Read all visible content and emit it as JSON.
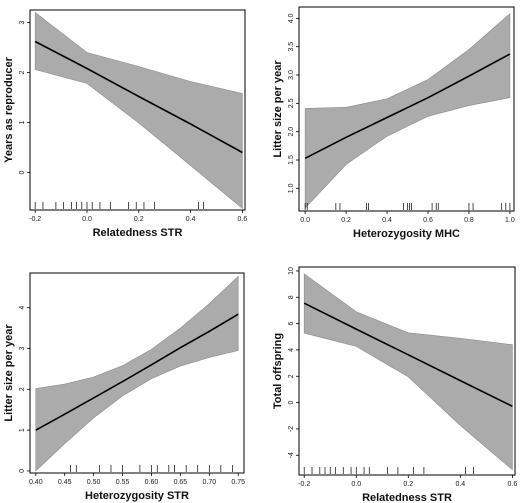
{
  "chart_data": [
    {
      "type": "line",
      "xlabel": "Relatedness STR",
      "ylabel": "Years as reproducer",
      "xlim": [
        -0.22,
        0.61
      ],
      "ylim": [
        -0.75,
        3.25
      ],
      "xticks": [
        "-0.2",
        "0.0",
        "0.2",
        "0.4",
        "0.6"
      ],
      "xtick_values": [
        -0.2,
        0.0,
        0.2,
        0.4,
        0.6
      ],
      "yticks": [
        "0",
        "1",
        "2",
        "3"
      ],
      "ytick_values": [
        0,
        1,
        2,
        3
      ],
      "x": [
        -0.2,
        0.0,
        0.2,
        0.4,
        0.6
      ],
      "fit": [
        2.62,
        2.08,
        1.52,
        0.97,
        0.4
      ],
      "lower": [
        2.06,
        1.78,
        0.99,
        0.14,
        -0.72
      ],
      "upper": [
        3.2,
        2.4,
        2.12,
        1.82,
        1.58
      ],
      "rug": [
        -0.2,
        -0.17,
        -0.12,
        -0.09,
        -0.06,
        -0.04,
        -0.02,
        0.0,
        0.02,
        0.05,
        0.09,
        0.16,
        0.19,
        0.22,
        0.26,
        0.43,
        0.45
      ]
    },
    {
      "type": "line",
      "xlabel": "Heterozygosity MHC",
      "ylabel": "Litter size per year",
      "xlim": [
        -0.03,
        1.02
      ],
      "ylim": [
        0.6,
        4.2
      ],
      "xticks": [
        "0.0",
        "0.2",
        "0.4",
        "0.6",
        "0.8",
        "1.0"
      ],
      "xtick_values": [
        0.0,
        0.2,
        0.4,
        0.6,
        0.8,
        1.0
      ],
      "yticks": [
        "1.0",
        "1.5",
        "2.0",
        "2.5",
        "3.0",
        "3.5",
        "4.0"
      ],
      "ytick_values": [
        1.0,
        1.5,
        2.0,
        2.5,
        3.0,
        3.5,
        4.0
      ],
      "x": [
        0.0,
        0.2,
        0.4,
        0.6,
        0.8,
        1.0
      ],
      "fit": [
        1.53,
        1.9,
        2.25,
        2.6,
        2.98,
        3.37
      ],
      "lower": [
        0.65,
        1.42,
        1.92,
        2.27,
        2.46,
        2.6
      ],
      "upper": [
        2.41,
        2.43,
        2.58,
        2.92,
        3.45,
        4.08
      ],
      "rug": [
        0.0,
        0.01,
        0.15,
        0.17,
        0.3,
        0.31,
        0.48,
        0.5,
        0.51,
        0.52,
        0.62,
        0.64,
        0.65,
        0.8,
        0.82,
        0.96,
        0.98,
        1.0
      ]
    },
    {
      "type": "line",
      "xlabel": "Heterozygosity STR",
      "ylabel": "Litter size per year",
      "xlim": [
        0.39,
        0.76
      ],
      "ylim": [
        -0.05,
        4.85
      ],
      "xticks": [
        "0.40",
        "0.45",
        "0.50",
        "0.55",
        "0.60",
        "0.65",
        "0.70",
        "0.75"
      ],
      "xtick_values": [
        0.4,
        0.45,
        0.5,
        0.55,
        0.6,
        0.65,
        0.7,
        0.75
      ],
      "yticks": [
        "0",
        "1",
        "2",
        "3",
        "4"
      ],
      "ytick_values": [
        0,
        1,
        2,
        3,
        4
      ],
      "x": [
        0.4,
        0.45,
        0.5,
        0.55,
        0.6,
        0.65,
        0.7,
        0.75
      ],
      "fit": [
        1.0,
        1.39,
        1.79,
        2.19,
        2.6,
        3.02,
        3.42,
        3.84
      ],
      "lower": [
        0.0,
        0.67,
        1.3,
        1.84,
        2.26,
        2.57,
        2.78,
        2.95
      ],
      "upper": [
        2.02,
        2.13,
        2.3,
        2.58,
        2.98,
        3.5,
        4.1,
        4.77
      ],
      "rug": [
        0.46,
        0.47,
        0.51,
        0.53,
        0.55,
        0.58,
        0.6,
        0.61,
        0.63,
        0.64,
        0.66,
        0.68,
        0.7,
        0.72,
        0.74
      ]
    },
    {
      "type": "line",
      "xlabel": "Relatedness STR",
      "ylabel": "Total offspring",
      "xlim": [
        -0.22,
        0.61
      ],
      "ylim": [
        -5.5,
        10.3
      ],
      "xticks": [
        "-0.2",
        "0.0",
        "0.2",
        "0.4",
        "0.6"
      ],
      "xtick_values": [
        -0.2,
        0.0,
        0.2,
        0.4,
        0.6
      ],
      "yticks": [
        "-4",
        "-2",
        "0",
        "2",
        "4",
        "6",
        "8",
        "10"
      ],
      "ytick_values": [
        -4,
        -2,
        0,
        2,
        4,
        6,
        8,
        10
      ],
      "x": [
        -0.2,
        0.0,
        0.2,
        0.4,
        0.6
      ],
      "fit": [
        7.55,
        5.58,
        3.63,
        1.67,
        -0.28
      ],
      "lower": [
        5.28,
        4.27,
        1.95,
        -1.74,
        -5.1
      ],
      "upper": [
        9.78,
        6.9,
        5.3,
        4.88,
        4.4
      ],
      "rug": [
        -0.2,
        -0.17,
        -0.14,
        -0.12,
        -0.1,
        -0.08,
        -0.05,
        -0.02,
        0.0,
        0.03,
        0.05,
        0.12,
        0.16,
        0.22,
        0.26,
        0.42,
        0.45
      ]
    }
  ]
}
